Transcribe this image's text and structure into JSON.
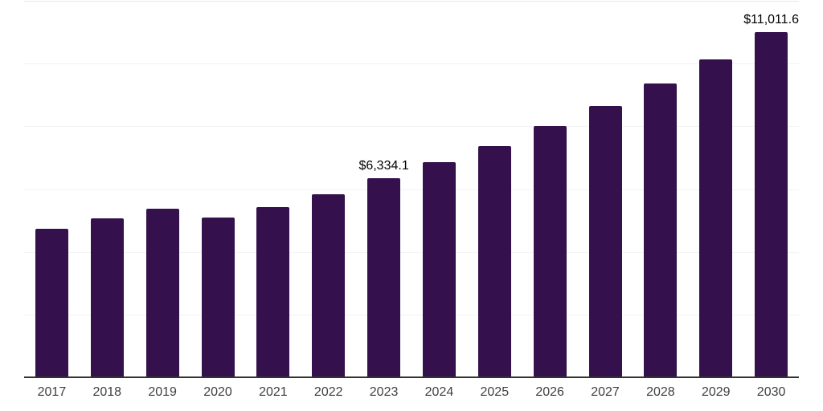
{
  "chart_data": {
    "type": "bar",
    "title": "",
    "xlabel": "",
    "ylabel": "",
    "categories": [
      "2017",
      "2018",
      "2019",
      "2020",
      "2021",
      "2022",
      "2023",
      "2024",
      "2025",
      "2026",
      "2027",
      "2028",
      "2029",
      "2030"
    ],
    "values": [
      4740,
      5060,
      5380,
      5090,
      5420,
      5830,
      6334.1,
      6855,
      7365,
      8005,
      8645,
      9360,
      10130,
      11011.6
    ],
    "point_labels": [
      "",
      "",
      "",
      "",
      "",
      "",
      "$6,334.1",
      "",
      "",
      "",
      "",
      "",
      "",
      "$11,011.6"
    ],
    "ylim": [
      0,
      12000
    ],
    "gridline_step": 2000,
    "gridline_count": 6,
    "grid": "horizontal",
    "legend": "none",
    "y_tick_labels_visible": false
  },
  "colors": {
    "background": "#ffffff",
    "bar": "#34114d",
    "grid_top": "#e8e8e8",
    "grid": "#f3f3f3",
    "axis": "#333333",
    "tick_label": "#404040",
    "value_label": "#000000"
  }
}
